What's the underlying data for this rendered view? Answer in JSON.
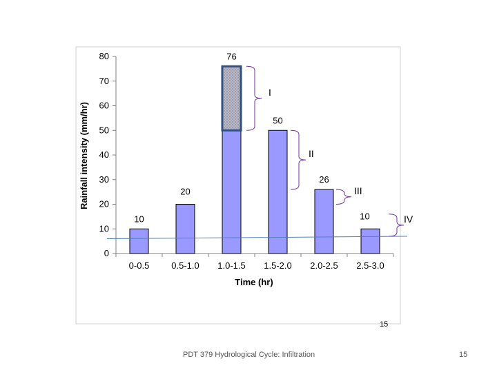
{
  "chart_data": {
    "type": "bar",
    "categories": [
      "0-0.5",
      "0.5-1.0",
      "1.0-1.5",
      "1.5-2.0",
      "2.0-2.5",
      "2.5-3.0"
    ],
    "values": [
      10,
      20,
      76,
      50,
      26,
      10
    ],
    "data_labels": [
      "10",
      "20",
      "76",
      "50",
      "26",
      "10"
    ],
    "xlabel": "Time (hr)",
    "ylabel": "Rainfall intensity (mm/hr)",
    "ylim": [
      0,
      80
    ],
    "yticks": [
      "0",
      "10",
      "20",
      "30",
      "40",
      "50",
      "60",
      "70",
      "80"
    ],
    "ytick_values": [
      0,
      10,
      20,
      30,
      40,
      50,
      60,
      70,
      80
    ],
    "grid": false,
    "legend": "none",
    "bar_color": "#9999ff",
    "highlight_color": "#b0b0c0",
    "highlight_range": [
      50,
      76
    ],
    "infiltration_line": {
      "start_value": 6,
      "end_value": 7
    },
    "line_color": "#4f81bd",
    "brace_color": "#7030a0",
    "regions": [
      {
        "label": "I",
        "from": 50,
        "to": 76
      },
      {
        "label": "II",
        "from": 26,
        "to": 50
      },
      {
        "label": "III",
        "from": 20,
        "to": 26
      },
      {
        "label": "IV",
        "from": 7,
        "to": 16
      }
    ]
  },
  "chart_page_number": "15",
  "footer": {
    "title": "PDT 379 Hydrological Cycle: Infiltration",
    "slide_number": "15"
  }
}
